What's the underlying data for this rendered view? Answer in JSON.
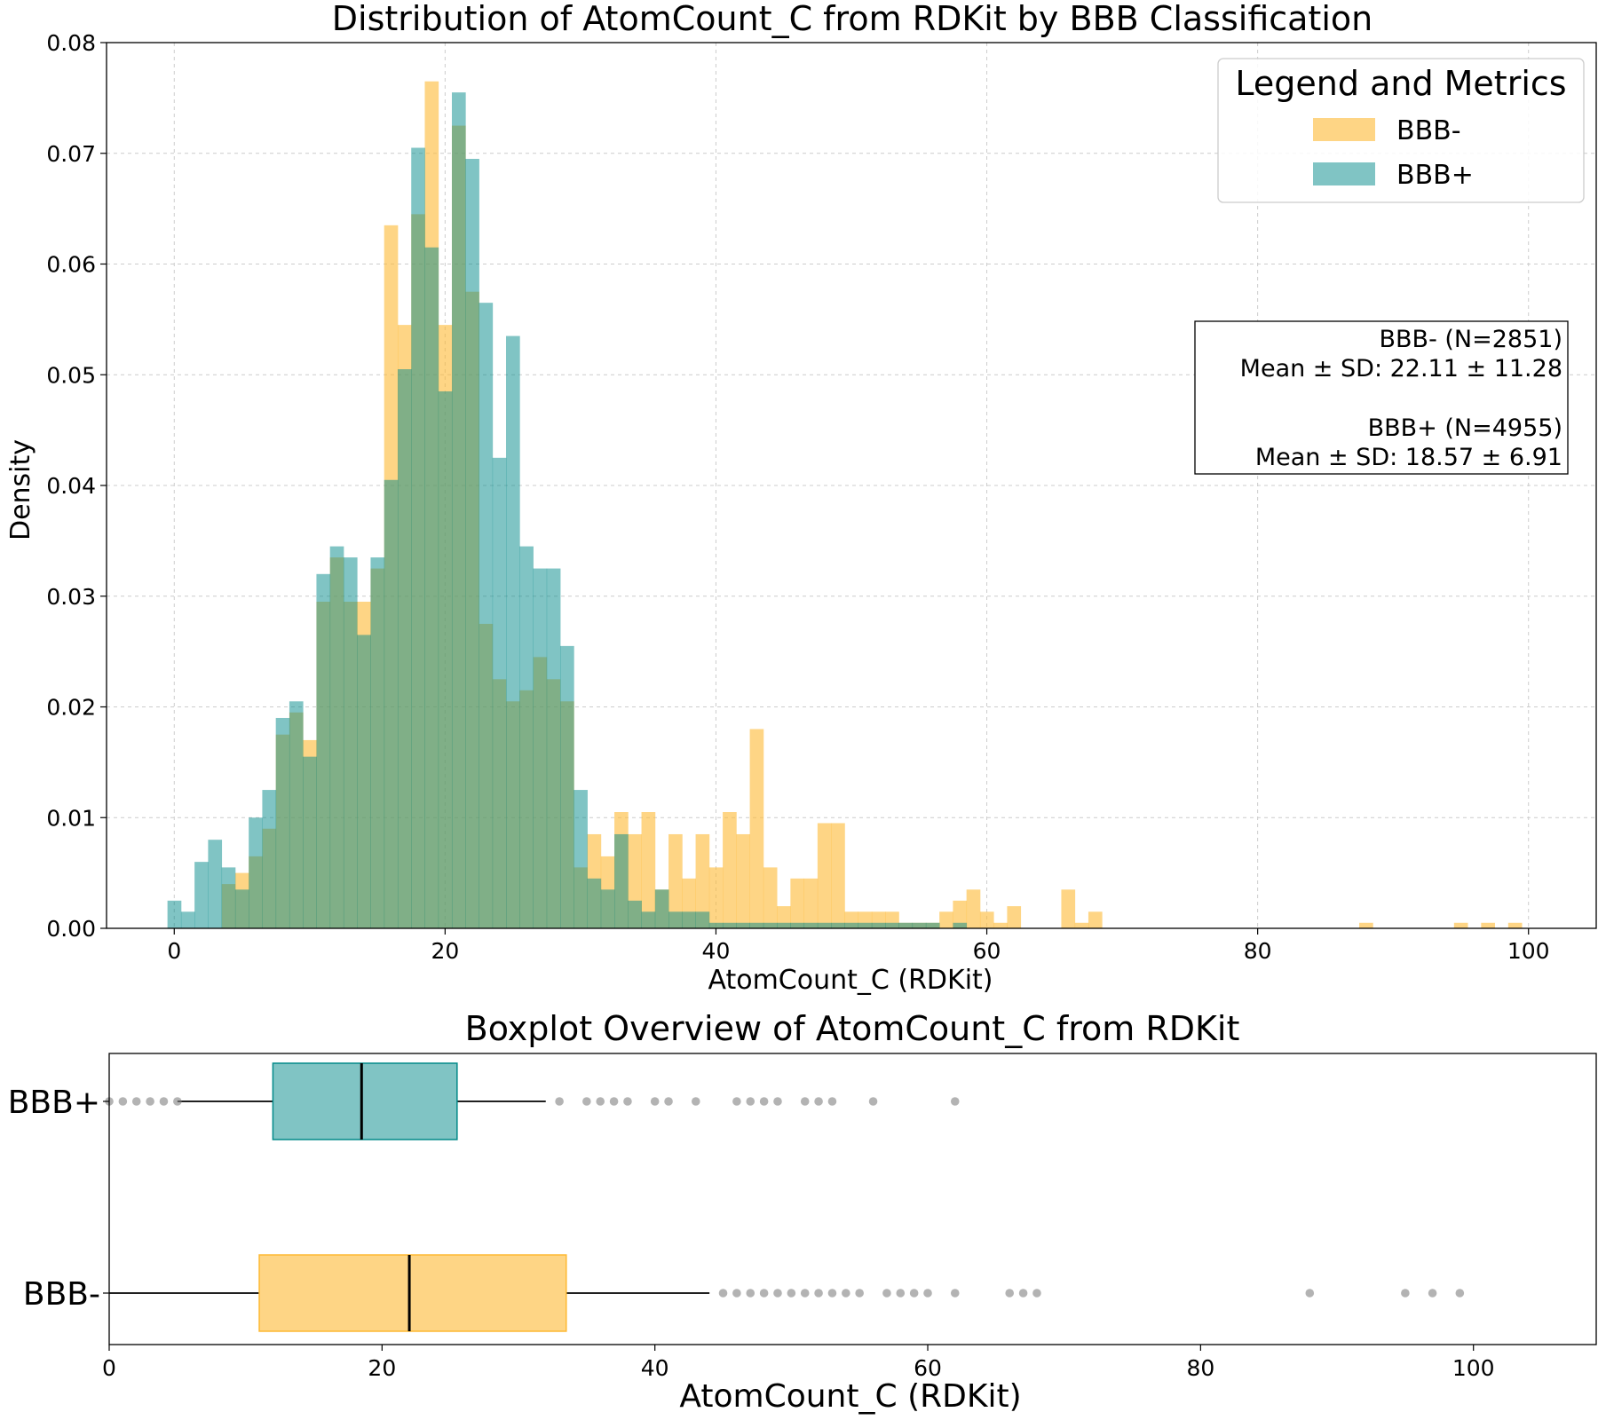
{
  "colors": {
    "bbb_neg": "#FDB933",
    "bbb_pos": "#028A89",
    "overlap": "#7FA87A",
    "outlier": "#808080",
    "grid": "#cccccc"
  },
  "legend": {
    "title": "Legend and Metrics",
    "items": [
      {
        "label": "BBB-",
        "color": "#FDB933"
      },
      {
        "label": "BBB+",
        "color": "#028A89"
      }
    ]
  },
  "stats_box": {
    "lines": [
      "BBB- (N=2851)",
      "Mean ± SD: 22.11 ± 11.28",
      "",
      "BBB+ (N=4955)",
      "Mean ± SD: 18.57 ± 6.91"
    ]
  },
  "chart_data": [
    {
      "type": "bar",
      "subtype": "overlapping-histogram",
      "title": "Distribution of AtomCount_C from RDKit by BBB Classification",
      "xlabel": "AtomCount_C (RDKit)",
      "ylabel": "Density",
      "xlim": [
        -5,
        105
      ],
      "ylim": [
        0,
        0.08
      ],
      "xticks": [
        0,
        20,
        40,
        60,
        80,
        100
      ],
      "yticks": [
        "0.00",
        "0.01",
        "0.02",
        "0.03",
        "0.04",
        "0.05",
        "0.06",
        "0.07",
        "0.08"
      ],
      "bin_edges_start": -0.5,
      "bin_width": 1.0,
      "grid": true,
      "legend_position": "top-right",
      "series": [
        {
          "name": "BBB-",
          "values": [
            0,
            0,
            0,
            0,
            0.004,
            0.005,
            0.0065,
            0.009,
            0.0175,
            0.0195,
            0.017,
            0.0295,
            0.0335,
            0.0295,
            0.0295,
            0.0325,
            0.0635,
            0.0545,
            0.0645,
            0.0765,
            0.0545,
            0.0725,
            0.0575,
            0.0275,
            0.0225,
            0.0205,
            0.0215,
            0.0245,
            0.0225,
            0.0205,
            0.0055,
            0.0085,
            0.0065,
            0.0105,
            0.0085,
            0.0105,
            0.0035,
            0.0085,
            0.0045,
            0.0085,
            0.0055,
            0.0105,
            0.0085,
            0.018,
            0.0055,
            0.002,
            0.0045,
            0.0045,
            0.0095,
            0.0095,
            0.0015,
            0.0015,
            0.0015,
            0.0015,
            0.0005,
            0.0005,
            0.0005,
            0.0015,
            0.0025,
            0.0035,
            0.0015,
            0.0005,
            0.002,
            0,
            0,
            0,
            0.0035,
            0.0005,
            0.0015,
            0,
            0,
            0,
            0,
            0,
            0,
            0,
            0,
            0,
            0,
            0,
            0,
            0,
            0,
            0,
            0,
            0,
            0,
            0,
            0.0005,
            0,
            0,
            0,
            0,
            0,
            0,
            0.0005,
            0,
            0.0005,
            0,
            0.0005,
            0
          ]
        },
        {
          "name": "BBB+",
          "values": [
            0.0025,
            0.0015,
            0.006,
            0.008,
            0.0055,
            0.0035,
            0.01,
            0.0125,
            0.019,
            0.0205,
            0.0155,
            0.032,
            0.0345,
            0.0335,
            0.0265,
            0.0335,
            0.0405,
            0.0505,
            0.0705,
            0.0615,
            0.0485,
            0.0755,
            0.0695,
            0.0565,
            0.0425,
            0.0535,
            0.0345,
            0.0325,
            0.0325,
            0.0255,
            0.0125,
            0.0045,
            0.0035,
            0.0085,
            0.0025,
            0.0015,
            0.0035,
            0.0015,
            0.0015,
            0.0015,
            0.0005,
            0.0005,
            0.0005,
            0.0005,
            0.0005,
            0.0005,
            0.0005,
            0.0005,
            0.0005,
            0.0005,
            0.0005,
            0.0005,
            0.0005,
            0.0005,
            0.0005,
            0.0005,
            0.0005,
            0,
            0.0005,
            0,
            0,
            0,
            0,
            0,
            0,
            0,
            0,
            0,
            0,
            0,
            0,
            0,
            0,
            0,
            0,
            0,
            0,
            0,
            0,
            0,
            0,
            0,
            0,
            0,
            0,
            0,
            0,
            0,
            0,
            0,
            0,
            0,
            0,
            0,
            0,
            0,
            0,
            0,
            0,
            0,
            0
          ]
        }
      ]
    },
    {
      "type": "boxplot",
      "orientation": "horizontal",
      "title": "Boxplot Overview of AtomCount_C from RDKit",
      "xlabel": "AtomCount_C (RDKit)",
      "xlim": [
        0,
        109
      ],
      "xticks": [
        0,
        20,
        40,
        60,
        80,
        100
      ],
      "categories": [
        "BBB+",
        "BBB-"
      ],
      "series": [
        {
          "name": "BBB+",
          "whisker_low": 5,
          "q1": 12,
          "median": 18.5,
          "q3": 25.5,
          "whisker_high": 32,
          "outliers": [
            0,
            1,
            2,
            3,
            4,
            5,
            33,
            35,
            36,
            37,
            38,
            40,
            41,
            43,
            46,
            47,
            48,
            49,
            51,
            52,
            53,
            56,
            62
          ]
        },
        {
          "name": "BBB-",
          "whisker_low": 0,
          "q1": 11,
          "median": 22,
          "q3": 33.5,
          "whisker_high": 44,
          "outliers": [
            45,
            46,
            47,
            48,
            49,
            50,
            51,
            52,
            53,
            54,
            55,
            57,
            58,
            59,
            60,
            62,
            66,
            67,
            68,
            88,
            95,
            97,
            99
          ]
        }
      ]
    }
  ]
}
